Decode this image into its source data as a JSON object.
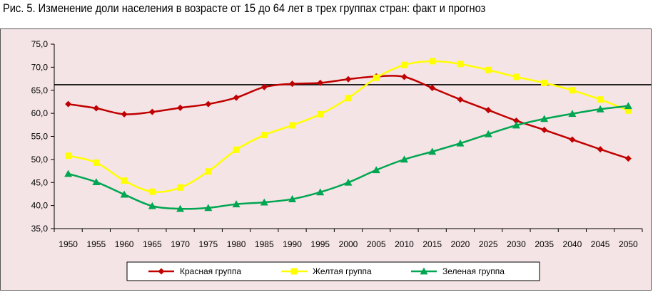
{
  "caption": "Рис. 5. Изменение доли населения в возрасте от 15 до 64 лет в трех группах стран: факт и прогноз",
  "chart_data": {
    "type": "line",
    "title": "Рис. 5. Изменение доли населения в возрасте от 15 до 64 лет в трех группах стран: факт и прогноз",
    "xlabel": "",
    "ylabel": "",
    "x": [
      1950,
      1955,
      1960,
      1965,
      1970,
      1975,
      1980,
      1985,
      1990,
      1995,
      2000,
      2005,
      2010,
      2015,
      2020,
      2025,
      2030,
      2035,
      2040,
      2045,
      2050
    ],
    "ylim": [
      35,
      75
    ],
    "yticks": [
      "35,0",
      "40,0",
      "45,0",
      "50,0",
      "55,0",
      "60,0",
      "65,0",
      "70,0",
      "75,0"
    ],
    "reference_line": 66.2,
    "grid": false,
    "legend_position": "bottom",
    "series": [
      {
        "name": "Красная группа",
        "color": "#c00000",
        "marker": "diamond",
        "values": [
          62.0,
          61.1,
          59.8,
          60.3,
          61.2,
          62.0,
          63.4,
          65.7,
          66.4,
          66.6,
          67.4,
          68.0,
          67.9,
          65.5,
          63.0,
          60.7,
          58.4,
          56.4,
          54.3,
          52.2,
          50.2
        ]
      },
      {
        "name": "Желтая группа",
        "color": "#ffff00",
        "marker": "square",
        "values": [
          50.8,
          49.3,
          45.4,
          43.0,
          43.9,
          47.4,
          52.1,
          55.3,
          57.4,
          59.8,
          63.3,
          67.7,
          70.5,
          71.3,
          70.7,
          69.4,
          67.9,
          66.6,
          65.0,
          63.0,
          60.6
        ]
      },
      {
        "name": "Зеленая группа",
        "color": "#00a651",
        "marker": "triangle",
        "values": [
          46.9,
          45.1,
          42.4,
          39.9,
          39.3,
          39.5,
          40.3,
          40.7,
          41.4,
          42.9,
          45.0,
          47.7,
          50.0,
          51.7,
          53.5,
          55.5,
          57.4,
          58.8,
          59.9,
          60.9,
          61.6
        ]
      }
    ]
  }
}
